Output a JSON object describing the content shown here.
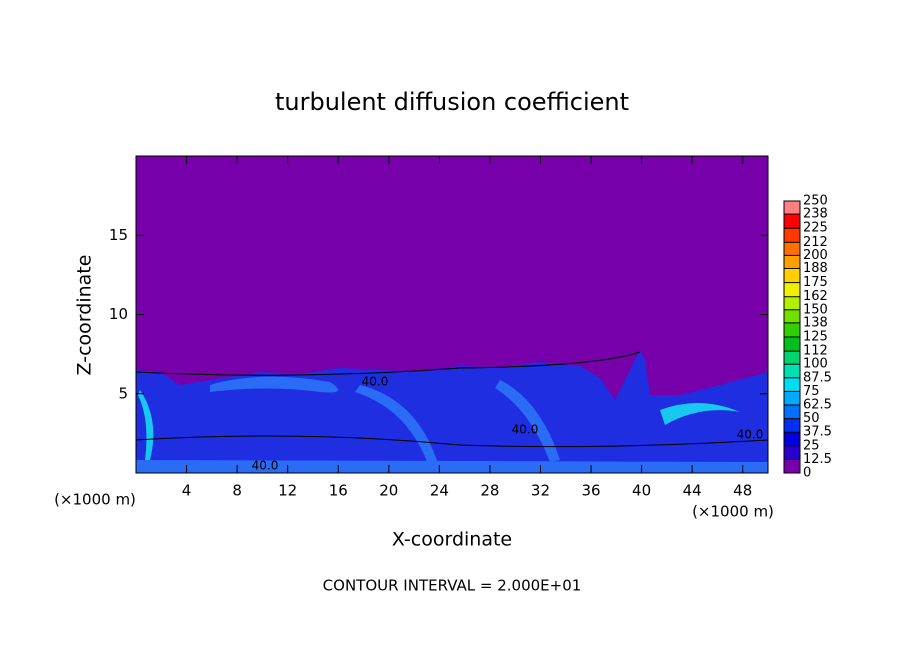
{
  "chart_data": {
    "type": "contour",
    "title": "turbulent diffusion coefficient",
    "xlabel": "X-coordinate",
    "ylabel": "Z-coordinate",
    "xunit": "(×1000 m)",
    "yunit": "(×1000 m)",
    "xlim": [
      0,
      50
    ],
    "xticks": [
      4,
      8,
      12,
      16,
      20,
      24,
      28,
      32,
      36,
      40,
      44,
      48
    ],
    "ylim": [
      0,
      20
    ],
    "yticks": [
      5,
      10,
      15
    ],
    "annotations": [
      "40.0",
      "40.0",
      "40.0",
      "40.0"
    ],
    "footnote": "CONTOUR INTERVAL = 2.000E+01",
    "colorbar": {
      "levels": [
        0,
        12.5,
        25,
        37.5,
        50,
        62.5,
        75,
        87.5,
        100,
        112,
        125,
        138,
        150,
        162,
        175,
        188,
        200,
        212,
        225,
        238,
        250
      ],
      "colors": [
        "#7700aa",
        "#2a00cc",
        "#0000dd",
        "#0030f0",
        "#0070ff",
        "#00a8ff",
        "#00dcf0",
        "#00e0b0",
        "#00d470",
        "#00c020",
        "#30d000",
        "#70e000",
        "#b0f000",
        "#f0f000",
        "#ffd000",
        "#ffa000",
        "#ff7000",
        "#ff3800",
        "#ff0000",
        "#ff8080"
      ]
    }
  }
}
